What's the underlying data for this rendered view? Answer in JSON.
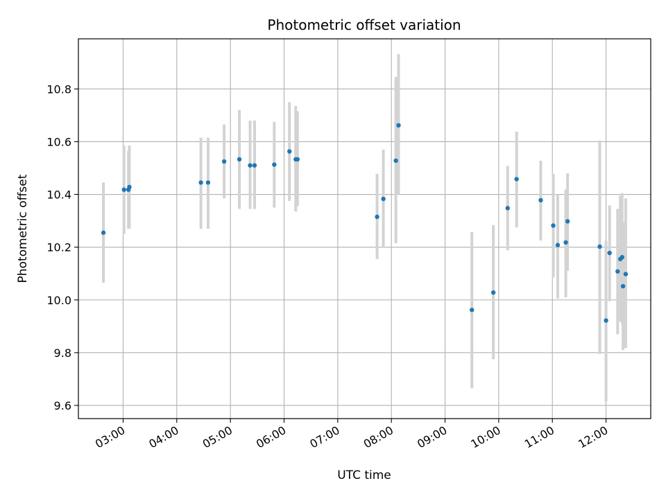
{
  "chart_data": {
    "type": "scatter",
    "title": "Photometric offset variation",
    "xlabel": "UTC time",
    "ylabel": "Photometric offset",
    "xlim": [
      "02:10",
      "12:50"
    ],
    "ylim": [
      9.55,
      10.99
    ],
    "grid": true,
    "x_ticks": [
      "03:00",
      "04:00",
      "05:00",
      "06:00",
      "07:00",
      "08:00",
      "09:00",
      "10:00",
      "11:00",
      "12:00"
    ],
    "y_ticks": [
      "9.6",
      "9.8",
      "10.0",
      "10.2",
      "10.4",
      "10.6",
      "10.8"
    ],
    "point_color": "#1f77b4",
    "errorbar_color": "#d3d3d3",
    "points": [
      {
        "t": "02:38",
        "y": 10.255,
        "lo": 10.065,
        "hi": 10.445
      },
      {
        "t": "03:01",
        "y": 10.418,
        "lo": 10.25,
        "hi": 10.585
      },
      {
        "t": "03:06",
        "y": 10.418,
        "lo": 10.27,
        "hi": 10.565
      },
      {
        "t": "03:07",
        "y": 10.428,
        "lo": 10.27,
        "hi": 10.585
      },
      {
        "t": "04:27",
        "y": 10.445,
        "lo": 10.27,
        "hi": 10.615
      },
      {
        "t": "04:35",
        "y": 10.445,
        "lo": 10.27,
        "hi": 10.615
      },
      {
        "t": "04:53",
        "y": 10.525,
        "lo": 10.385,
        "hi": 10.665
      },
      {
        "t": "05:10",
        "y": 10.533,
        "lo": 10.345,
        "hi": 10.72
      },
      {
        "t": "05:22",
        "y": 10.51,
        "lo": 10.345,
        "hi": 10.68
      },
      {
        "t": "05:27",
        "y": 10.51,
        "lo": 10.345,
        "hi": 10.68
      },
      {
        "t": "05:49",
        "y": 10.513,
        "lo": 10.35,
        "hi": 10.675
      },
      {
        "t": "06:06",
        "y": 10.563,
        "lo": 10.375,
        "hi": 10.75
      },
      {
        "t": "06:13",
        "y": 10.533,
        "lo": 10.335,
        "hi": 10.735
      },
      {
        "t": "06:15",
        "y": 10.533,
        "lo": 10.355,
        "hi": 10.715
      },
      {
        "t": "07:44",
        "y": 10.315,
        "lo": 10.155,
        "hi": 10.478
      },
      {
        "t": "07:51",
        "y": 10.383,
        "lo": 10.2,
        "hi": 10.57
      },
      {
        "t": "08:05",
        "y": 10.528,
        "lo": 10.215,
        "hi": 10.845
      },
      {
        "t": "08:08",
        "y": 10.662,
        "lo": 10.4,
        "hi": 10.932
      },
      {
        "t": "09:30",
        "y": 9.962,
        "lo": 9.665,
        "hi": 10.258
      },
      {
        "t": "09:54",
        "y": 10.028,
        "lo": 9.775,
        "hi": 10.283
      },
      {
        "t": "10:10",
        "y": 10.348,
        "lo": 10.188,
        "hi": 10.508
      },
      {
        "t": "10:20",
        "y": 10.458,
        "lo": 10.275,
        "hi": 10.638
      },
      {
        "t": "10:47",
        "y": 10.378,
        "lo": 10.225,
        "hi": 10.528
      },
      {
        "t": "11:01",
        "y": 10.282,
        "lo": 10.085,
        "hi": 10.478
      },
      {
        "t": "11:06",
        "y": 10.208,
        "lo": 10.005,
        "hi": 10.4
      },
      {
        "t": "11:15",
        "y": 10.218,
        "lo": 10.01,
        "hi": 10.418
      },
      {
        "t": "11:17",
        "y": 10.298,
        "lo": 10.11,
        "hi": 10.48
      },
      {
        "t": "11:53",
        "y": 10.202,
        "lo": 9.795,
        "hi": 10.605
      },
      {
        "t": "12:00",
        "y": 9.922,
        "lo": 9.615,
        "hi": 10.225
      },
      {
        "t": "12:04",
        "y": 10.178,
        "lo": 9.995,
        "hi": 10.358
      },
      {
        "t": "12:13",
        "y": 10.108,
        "lo": 9.87,
        "hi": 10.345
      },
      {
        "t": "12:16",
        "y": 10.155,
        "lo": 9.918,
        "hi": 10.395
      },
      {
        "t": "12:18",
        "y": 10.162,
        "lo": 9.91,
        "hi": 10.405
      },
      {
        "t": "12:19",
        "y": 10.052,
        "lo": 9.81,
        "hi": 10.295
      },
      {
        "t": "12:22",
        "y": 10.098,
        "lo": 9.818,
        "hi": 10.385
      }
    ]
  }
}
